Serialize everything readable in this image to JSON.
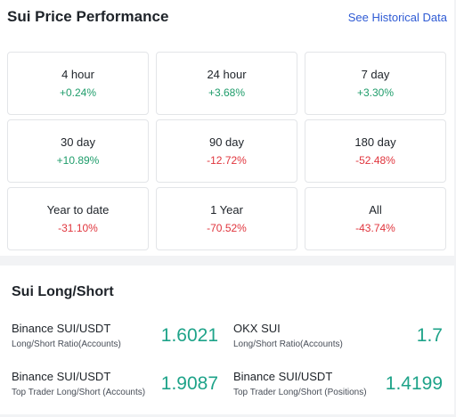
{
  "performance": {
    "title": "Sui Price Performance",
    "link": "See Historical Data",
    "cells": [
      {
        "label": "4 hour",
        "value": "+0.24%",
        "trend": "up"
      },
      {
        "label": "24 hour",
        "value": "+3.68%",
        "trend": "up"
      },
      {
        "label": "7 day",
        "value": "+3.30%",
        "trend": "up"
      },
      {
        "label": "30 day",
        "value": "+10.89%",
        "trend": "up"
      },
      {
        "label": "90 day",
        "value": "-12.72%",
        "trend": "down"
      },
      {
        "label": "180 day",
        "value": "-52.48%",
        "trend": "down"
      },
      {
        "label": "Year to date",
        "value": "-31.10%",
        "trend": "down"
      },
      {
        "label": "1 Year",
        "value": "-70.52%",
        "trend": "down"
      },
      {
        "label": "All",
        "value": "-43.74%",
        "trend": "down"
      }
    ]
  },
  "long_short": {
    "title": "Sui Long/Short",
    "items": [
      {
        "name": "Binance SUI/USDT",
        "metric": "Long/Short Ratio(Accounts)",
        "value": "1.6021"
      },
      {
        "name": "OKX SUI",
        "metric": "Long/Short Ratio(Accounts)",
        "value": "1.7"
      },
      {
        "name": "Binance SUI/USDT",
        "metric": "Top Trader Long/Short (Accounts)",
        "value": "1.9087"
      },
      {
        "name": "Binance SUI/USDT",
        "metric": "Top Trader Long/Short (Positions)",
        "value": "1.4199"
      }
    ]
  }
}
